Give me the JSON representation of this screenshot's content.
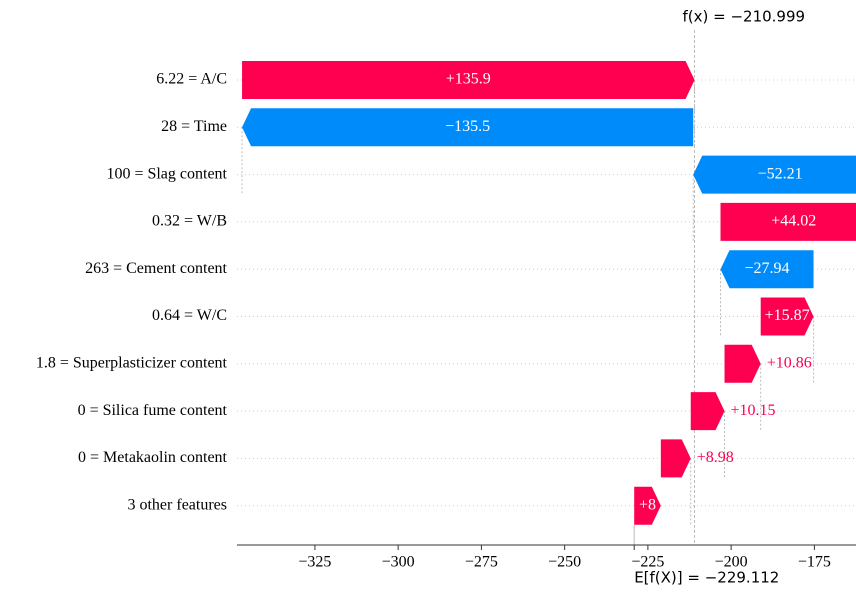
{
  "chart_data": {
    "type": "waterfall",
    "features": [
      "6.22 = A/C",
      "28 = Time",
      "100 = Slag content",
      "0.32 = W/B",
      "263 = Cement content",
      "0.64 = W/C",
      "1.8 = Superplasticizer content",
      "0 = Silica fume content",
      "0 = Metakaolin content",
      "3 other features"
    ],
    "values": [
      135.9,
      -135.5,
      -52.21,
      44.02,
      -27.94,
      15.87,
      10.86,
      10.15,
      8.98,
      8
    ],
    "value_labels": [
      "+135.9",
      "−135.5",
      "−52.21",
      "+44.02",
      "−27.94",
      "+15.87",
      "+10.86",
      "+10.15",
      "+8.98",
      "+8"
    ],
    "base": {
      "value": -229.112,
      "label": "E[f(X)] = −229.112"
    },
    "fx": {
      "value": -210.999,
      "label": "f(x) = −210.999"
    },
    "positive_color": "#ff0051",
    "negative_color": "#008bfb",
    "xlim": [
      -348.4,
      -162.5
    ],
    "xticks": [
      {
        "value": -325,
        "label": "−325"
      },
      {
        "value": -300,
        "label": "−300"
      },
      {
        "value": -275,
        "label": "−275"
      },
      {
        "value": -250,
        "label": "−250"
      },
      {
        "value": -225,
        "label": "−225"
      },
      {
        "value": -200,
        "label": "−200"
      },
      {
        "value": -175,
        "label": "−175"
      }
    ]
  }
}
